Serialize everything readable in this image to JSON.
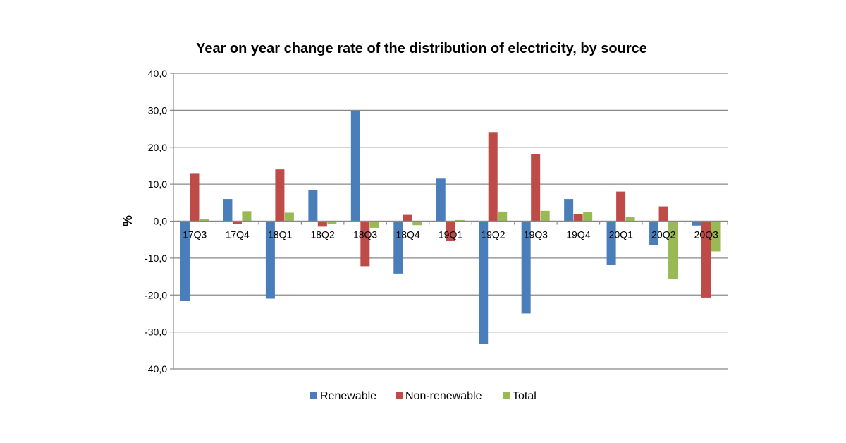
{
  "chart_data": {
    "type": "bar",
    "title": "Year on year change rate of the distribution of electricity, by source",
    "ylabel": "%",
    "xlabel": "",
    "ylim": [
      -40,
      40
    ],
    "yticks": [
      40,
      30,
      20,
      10,
      0,
      -10,
      -20,
      -30,
      -40
    ],
    "ytick_labels": [
      "40,0",
      "30,0",
      "20,0",
      "10,0",
      "0,0",
      "-10,0",
      "-20,0",
      "-30,0",
      "-40,0"
    ],
    "categories": [
      "17Q3",
      "17Q4",
      "18Q1",
      "18Q2",
      "18Q3",
      "18Q4",
      "19Q1",
      "19Q2",
      "19Q3",
      "19Q4",
      "20Q1",
      "20Q2",
      "20Q3"
    ],
    "series": [
      {
        "name": "Renewable",
        "color": "#4a7ebb",
        "values": [
          -21.5,
          6.0,
          -21.0,
          8.5,
          29.8,
          -14.2,
          11.5,
          -33.3,
          -25.0,
          6.0,
          -11.8,
          -6.5,
          -1.2
        ]
      },
      {
        "name": "Non-renewable",
        "color": "#be4b48",
        "values": [
          13.0,
          -0.8,
          14.0,
          -1.5,
          -12.2,
          1.7,
          -5.3,
          24.1,
          18.1,
          2.0,
          8.0,
          4.0,
          -20.7
        ]
      },
      {
        "name": "Total",
        "color": "#98b954",
        "values": [
          0.5,
          2.7,
          2.3,
          -0.7,
          -1.8,
          -1.1,
          0.3,
          2.6,
          2.8,
          2.4,
          1.1,
          -15.6,
          -8.2
        ]
      }
    ],
    "grid": true,
    "legend_position": "bottom"
  }
}
